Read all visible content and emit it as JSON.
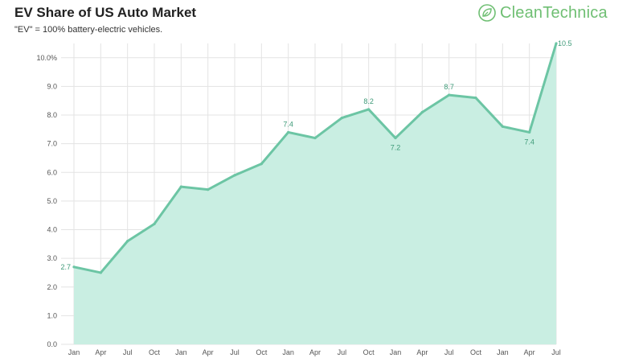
{
  "header": {
    "title": "EV Share of US Auto Market",
    "subtitle": "\"EV\" = 100% battery-electric vehicles.",
    "logo_text_a": "Clean",
    "logo_text_b": "Technica"
  },
  "colors": {
    "line": "#6cc5a4",
    "fill": "#c9eee2",
    "grid": "#e3e3e3",
    "label": "#3e9a78",
    "logo": "#6fbf73"
  },
  "chart_data": {
    "type": "area",
    "title": "EV Share of US Auto Market",
    "subtitle": "\"EV\" = 100% battery-electric vehicles.",
    "xlabel": "",
    "ylabel": "",
    "ylim": [
      0,
      10.5
    ],
    "yticks": [
      "0.0",
      "1.0",
      "2.0",
      "3.0",
      "4.0",
      "5.0",
      "6.0",
      "7.0",
      "8.0",
      "9.0",
      "10.0%"
    ],
    "grid": true,
    "x": [
      "Jan",
      "Apr",
      "Jul",
      "Oct",
      "Jan",
      "Apr",
      "Jul",
      "Oct",
      "Jan",
      "Apr",
      "Jul",
      "Oct",
      "Jan",
      "Apr",
      "Jul",
      "Oct",
      "Jan",
      "Apr",
      "Jul"
    ],
    "values": [
      2.7,
      2.5,
      3.6,
      4.2,
      5.5,
      5.4,
      5.9,
      6.3,
      7.4,
      7.2,
      7.9,
      8.2,
      7.2,
      8.1,
      8.7,
      8.6,
      7.6,
      7.4,
      10.5
    ],
    "data_labels": [
      {
        "index": 0,
        "text": "2.7",
        "pos": "left"
      },
      {
        "index": 8,
        "text": "7.4",
        "pos": "above"
      },
      {
        "index": 11,
        "text": "8.2",
        "pos": "above"
      },
      {
        "index": 12,
        "text": "7.2",
        "pos": "below"
      },
      {
        "index": 14,
        "text": "8.7",
        "pos": "above"
      },
      {
        "index": 17,
        "text": "7.4",
        "pos": "below"
      },
      {
        "index": 18,
        "text": "10.5",
        "pos": "right"
      }
    ]
  }
}
